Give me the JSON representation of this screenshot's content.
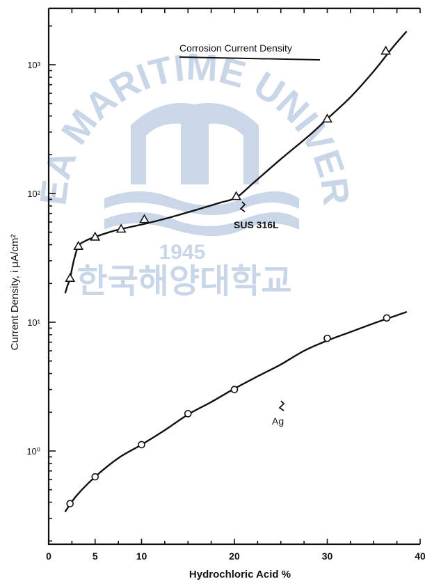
{
  "chart_data": {
    "type": "line",
    "title": "",
    "xlabel": "Hydrochloric Acid  %",
    "ylabel": "Current Density,  i  μA/cm²",
    "x_range": [
      0,
      40
    ],
    "y_range_log": [
      0.2,
      2000
    ],
    "y_scale": "log",
    "grid": false,
    "x_ticks": [
      0,
      5,
      10,
      20,
      30,
      40
    ],
    "x_tick_labels": [
      "0",
      "5",
      "10",
      "20",
      "30",
      "40"
    ],
    "y_ticks": [
      1,
      10,
      100,
      1000
    ],
    "y_tick_labels": [
      "10⁰",
      "10¹",
      "10²",
      "10³"
    ],
    "legend_title": "Corrosion Current Density",
    "series": [
      {
        "name": "SUS 316L",
        "marker": "triangle",
        "x": [
          2.3,
          3.2,
          5.0,
          7.8,
          10.3,
          20.2,
          30.0,
          36.3
        ],
        "y": [
          22,
          39,
          46,
          53,
          63,
          95,
          380,
          1280
        ],
        "curve_x": [
          1.8,
          2.0,
          2.3,
          2.7,
          3.2,
          4.0,
          5.0,
          6.5,
          7.8,
          10.3,
          13.0,
          16.0,
          18.5,
          20.2,
          22.0,
          25.0,
          28.0,
          30.0,
          32.5,
          35.0,
          37.0,
          38.5
        ],
        "curve_y": [
          17,
          19,
          22,
          30,
          39,
          43,
          46,
          50,
          53,
          58,
          65,
          75,
          85,
          93,
          120,
          185,
          280,
          380,
          560,
          890,
          1350,
          1800
        ]
      },
      {
        "name": "Ag",
        "marker": "circle",
        "x": [
          2.3,
          5.0,
          10.0,
          15.0,
          20.0,
          30.0,
          36.4
        ],
        "y": [
          0.39,
          0.63,
          1.12,
          1.95,
          3.0,
          7.5,
          10.8
        ],
        "curve_x": [
          1.8,
          3.0,
          5.0,
          7.5,
          10.0,
          12.5,
          15.0,
          17.5,
          20.0,
          22.5,
          25.0,
          27.5,
          30.0,
          32.5,
          35.0,
          37.0,
          38.5
        ],
        "curve_y": [
          0.34,
          0.45,
          0.63,
          0.88,
          1.12,
          1.45,
          1.92,
          2.4,
          3.05,
          3.8,
          4.7,
          6.0,
          7.2,
          8.4,
          9.8,
          11.0,
          12.0
        ]
      }
    ],
    "annotations": [
      "SUS 316L",
      "Ag"
    ]
  },
  "watermark": {
    "arc_text": "KOREA MARITIME UNIVERSITY",
    "year": "1945",
    "korean": "한국해양대학교",
    "color": "#3f6fb0"
  }
}
